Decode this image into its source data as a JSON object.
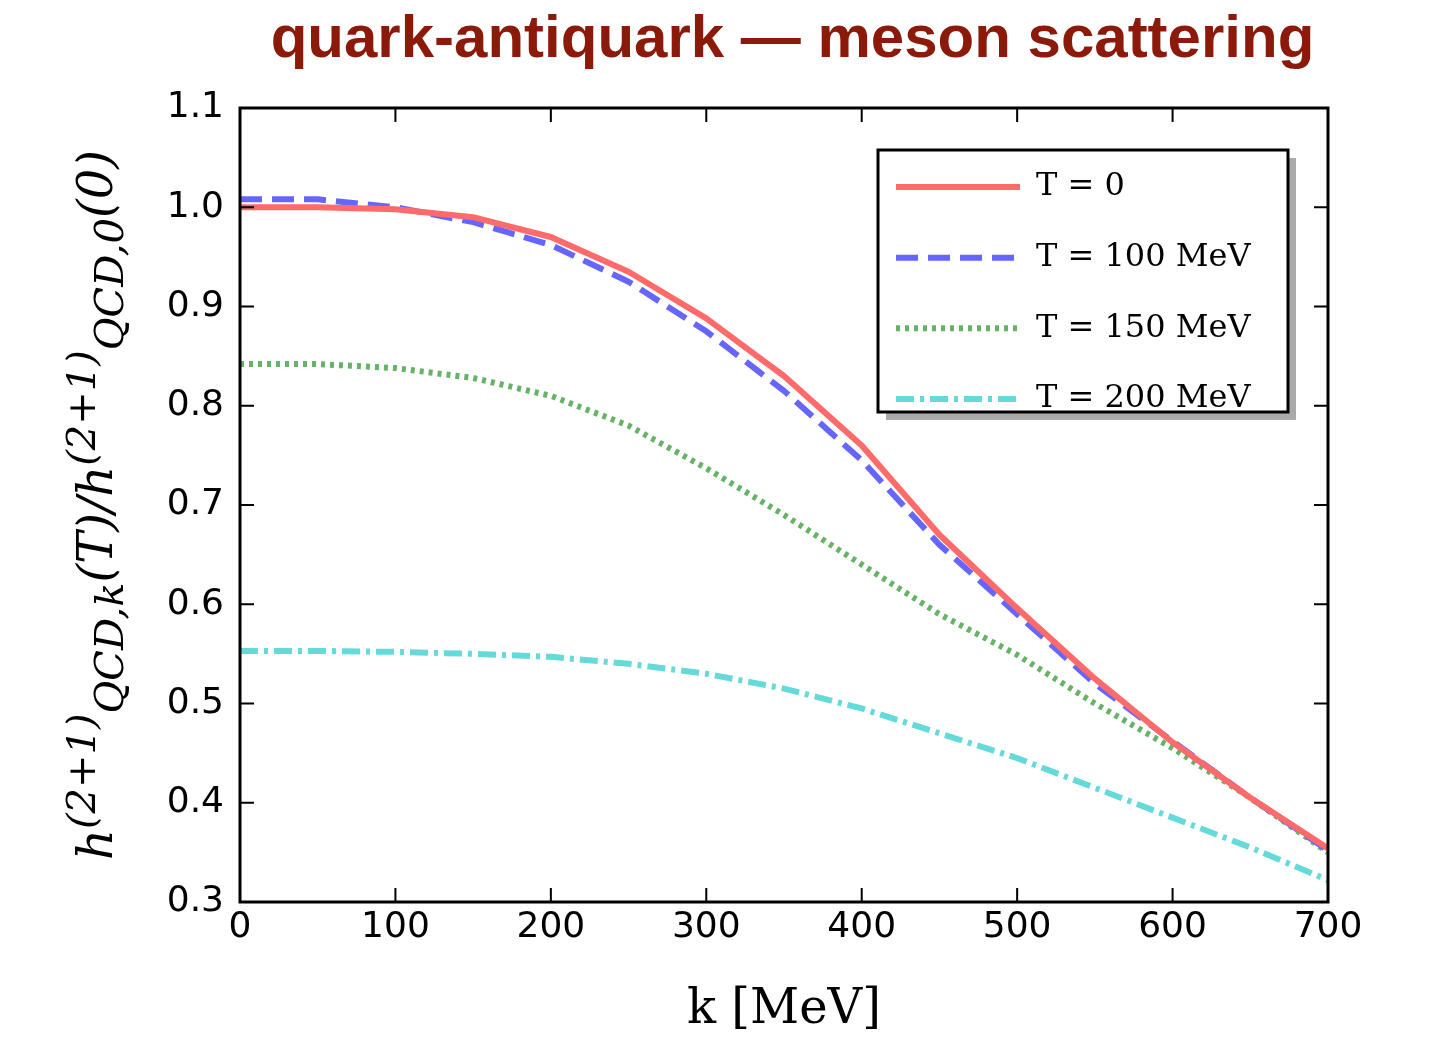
{
  "chart_data": {
    "type": "line",
    "title": "quark-antiquark — meson scattering",
    "xlabel": "k [MeV]",
    "ylabel": "h$^{(2+1)}$$_{QCD,k}$(T)/h$^{(2+1)}$$_{QCD,0}$(0)",
    "x": [
      0,
      50,
      100,
      150,
      200,
      250,
      300,
      350,
      400,
      450,
      500,
      550,
      600,
      650,
      700
    ],
    "series": [
      {
        "name": "T = 0",
        "color": "#ff6a6a",
        "line_style": "solid",
        "values": [
          1.0,
          1.0,
          0.998,
          0.99,
          0.97,
          0.935,
          0.888,
          0.83,
          0.76,
          0.67,
          0.596,
          0.525,
          0.461,
          0.405,
          0.354
        ]
      },
      {
        "name": "T = 100 MeV",
        "color": "#6666ff",
        "line_style": "dashed",
        "values": [
          1.008,
          1.008,
          1.0,
          0.985,
          0.962,
          0.925,
          0.875,
          0.815,
          0.745,
          0.66,
          0.59,
          0.52,
          0.462,
          0.405,
          0.352
        ]
      },
      {
        "name": "T = 150 MeV",
        "color": "#66b266",
        "line_style": "dotted",
        "values": [
          0.842,
          0.842,
          0.838,
          0.828,
          0.81,
          0.78,
          0.737,
          0.69,
          0.64,
          0.59,
          0.549,
          0.5,
          0.455,
          0.405,
          0.35
        ]
      },
      {
        "name": "T = 200 MeV",
        "color": "#66d9d9",
        "line_style": "dashdot",
        "values": [
          0.553,
          0.553,
          0.552,
          0.55,
          0.547,
          0.54,
          0.53,
          0.515,
          0.495,
          0.47,
          0.445,
          0.415,
          0.385,
          0.355,
          0.322
        ]
      }
    ],
    "xlim": [
      0,
      700
    ],
    "xticks": [
      0,
      100,
      200,
      300,
      400,
      500,
      600,
      700
    ],
    "ylim": [
      0.3,
      1.1
    ],
    "yticks": [
      0.3,
      0.4,
      0.5,
      0.6,
      0.7,
      0.8,
      0.9,
      {
        "value": 1,
        "label": "1.0"
      },
      1.1
    ],
    "grid": false,
    "legend": "top right",
    "marker": "none"
  }
}
